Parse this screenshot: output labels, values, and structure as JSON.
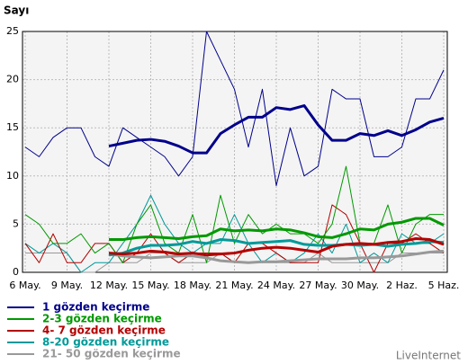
{
  "chart_data": {
    "type": "line",
    "title": "Sayı",
    "brand": "LiveInternet",
    "categories": [
      "6 May.",
      null,
      null,
      "9 May.",
      null,
      null,
      "12 May.",
      null,
      null,
      "15 May.",
      null,
      null,
      "18 May.",
      null,
      null,
      "21 May.",
      null,
      null,
      "24 May.",
      null,
      null,
      "27 May.",
      null,
      null,
      "30 May.",
      null,
      null,
      "2 Haz.",
      null,
      null,
      "5 Haz."
    ],
    "ylim": [
      0,
      25
    ],
    "yticks": [
      0,
      5,
      10,
      15,
      20,
      25
    ],
    "grid": true,
    "series": [
      {
        "name": "1 gözden keçirme",
        "color": "#00008b",
        "values": [
          13,
          12,
          14,
          15,
          15,
          12,
          11,
          15,
          14,
          13,
          12,
          10,
          12,
          25,
          22,
          19,
          13,
          19,
          9,
          15,
          10,
          11,
          19,
          18,
          18,
          12,
          12,
          13,
          18,
          18,
          21
        ],
        "trend": [
          null,
          null,
          null,
          null,
          null,
          null,
          13.1,
          13.4,
          13.7,
          13.8,
          13.6,
          13.1,
          12.4,
          12.4,
          14.4,
          15.3,
          16.1,
          16.1,
          17.1,
          16.9,
          17.3,
          15.3,
          13.7,
          13.7,
          14.4,
          14.2,
          14.7,
          14.2,
          14.8,
          15.6,
          16.0
        ]
      },
      {
        "name": "2-3 gözden keçirme",
        "color": "#009900",
        "values": [
          6,
          5,
          3,
          3,
          4,
          2,
          3,
          1,
          5,
          7,
          3,
          2,
          6,
          1,
          8,
          3,
          6,
          4,
          5,
          4,
          4,
          3,
          5,
          11,
          3,
          3,
          7,
          2,
          5,
          6,
          6
        ],
        "trend": [
          null,
          null,
          null,
          null,
          null,
          null,
          3.4,
          3.4,
          3.6,
          3.7,
          3.6,
          3.5,
          3.7,
          3.8,
          4.5,
          4.3,
          4.4,
          4.3,
          4.5,
          4.4,
          4.1,
          3.7,
          3.6,
          4.0,
          4.5,
          4.4,
          5.0,
          5.2,
          5.6,
          5.6,
          4.9
        ]
      },
      {
        "name": "4- 7 gözden keçirme",
        "color": "#b30000",
        "values": [
          3,
          1,
          4,
          1,
          1,
          3,
          3,
          1,
          2,
          4,
          2,
          1,
          2,
          2,
          2,
          1,
          3,
          3,
          2,
          1,
          1,
          1,
          7,
          6,
          3,
          0,
          3,
          3,
          4,
          3,
          2
        ],
        "trend": [
          null,
          null,
          null,
          null,
          null,
          null,
          2.0,
          1.9,
          2.0,
          2.2,
          2.1,
          1.9,
          2.0,
          1.8,
          1.9,
          2.0,
          2.3,
          2.5,
          2.6,
          2.5,
          2.3,
          2.1,
          2.7,
          2.9,
          3.0,
          2.9,
          3.1,
          3.2,
          3.5,
          3.4,
          2.9
        ]
      },
      {
        "name": "8-20 gözden keçirme",
        "color": "#009999",
        "values": [
          3,
          2,
          3,
          2,
          0,
          1,
          1,
          3,
          5,
          8,
          5,
          3,
          2,
          3,
          3,
          6,
          3,
          1,
          2,
          1,
          2,
          4,
          2,
          5,
          1,
          2,
          1,
          4,
          3,
          3,
          4
        ],
        "trend": [
          null,
          null,
          null,
          null,
          null,
          null,
          1.8,
          2.0,
          2.5,
          2.8,
          2.8,
          2.9,
          3.2,
          3.0,
          3.4,
          3.3,
          3.0,
          3.1,
          3.2,
          3.3,
          2.9,
          2.8,
          2.8,
          2.9,
          2.8,
          2.9,
          2.7,
          2.9,
          3.0,
          3.2,
          3.1
        ]
      },
      {
        "name": "21- 50 gözden keçirme",
        "color": "#999999",
        "values": [
          2,
          2,
          2,
          2,
          0,
          0,
          1,
          1,
          1,
          2,
          2,
          1,
          1,
          1,
          2,
          1,
          1,
          1,
          1,
          1,
          1,
          2,
          1,
          1,
          1,
          1,
          1,
          2,
          2,
          2,
          2
        ],
        "trend": [
          null,
          null,
          null,
          null,
          null,
          null,
          1.9,
          1.7,
          1.6,
          1.5,
          1.6,
          1.7,
          1.7,
          1.5,
          1.2,
          1.1,
          1.0,
          1.1,
          1.1,
          1.2,
          1.3,
          1.4,
          1.4,
          1.4,
          1.5,
          1.5,
          1.6,
          1.7,
          1.9,
          2.1,
          2.2
        ]
      }
    ]
  }
}
